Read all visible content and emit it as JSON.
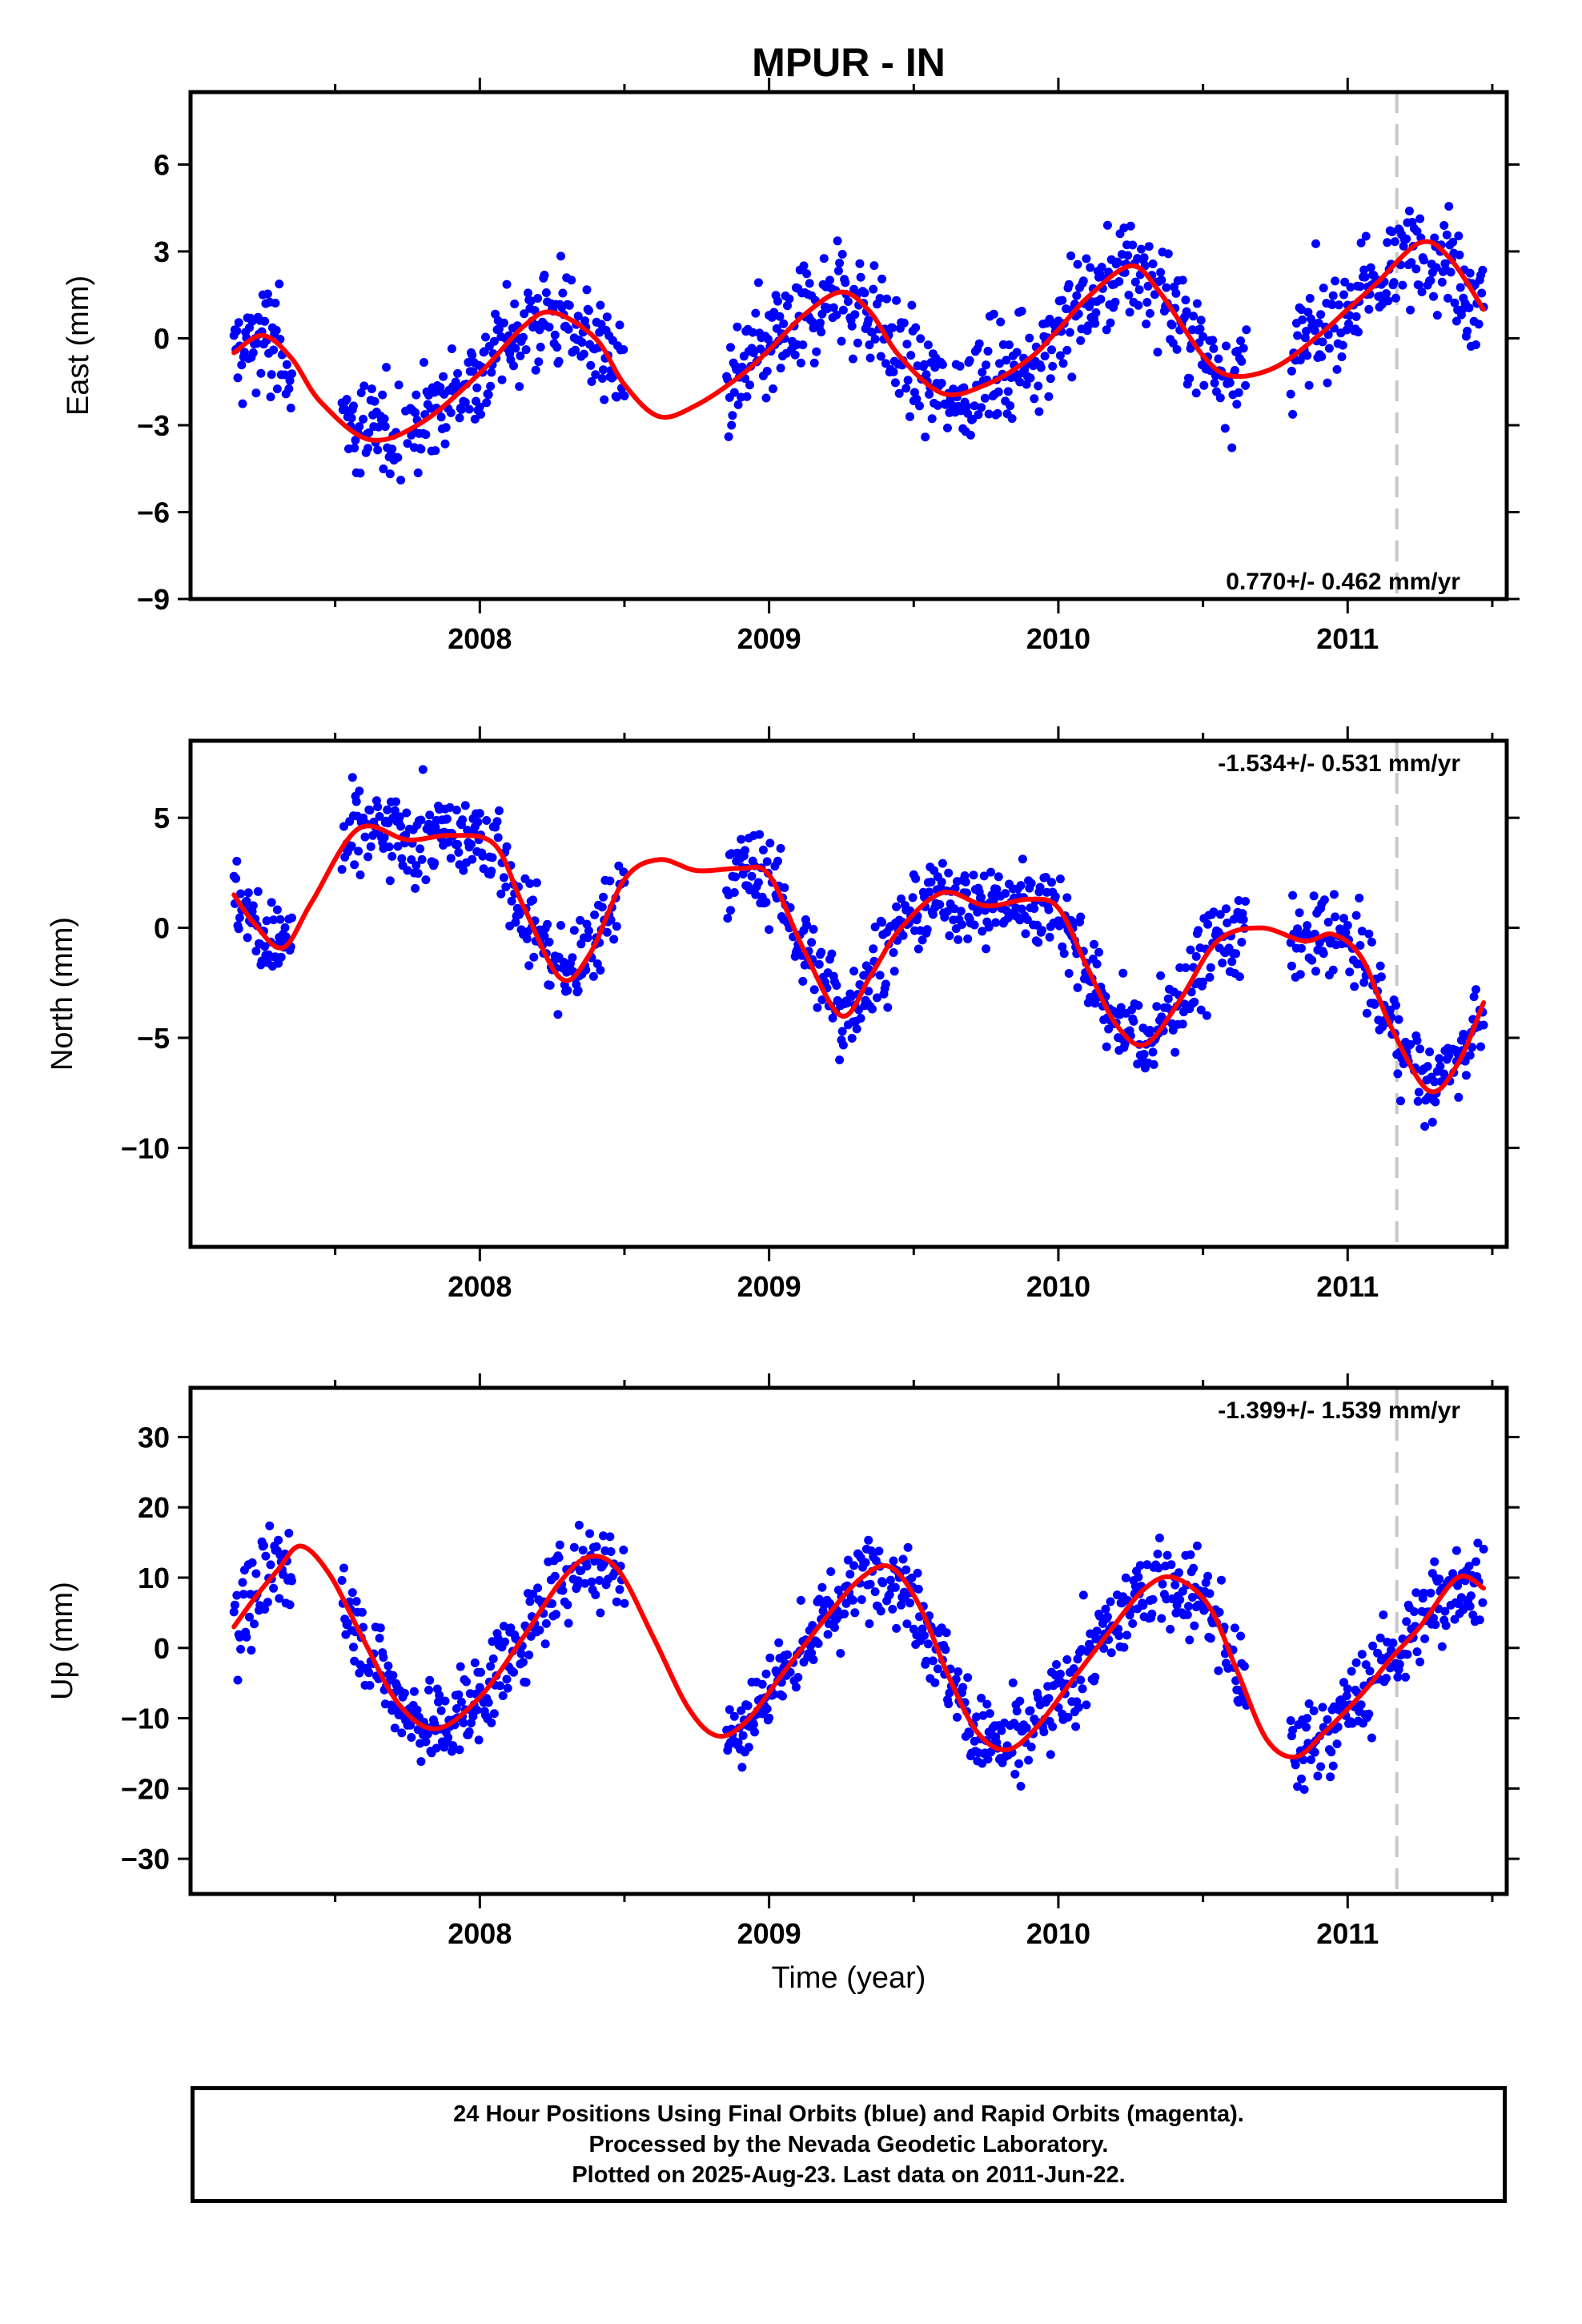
{
  "title": "MPUR - IN",
  "xlabel": "Time (year)",
  "x_tick_labels": [
    "2008",
    "2009",
    "2010",
    "2011"
  ],
  "caption": [
    "24 Hour Positions Using Final Orbits (blue) and Rapid Orbits (magenta).",
    "Processed by the Nevada Geodetic Laboratory.",
    "Plotted on 2025-Aug-23. Last data on 2011-Jun-22."
  ],
  "colors": {
    "observations": "#0000ff",
    "model": "#ff0000",
    "event_line": "#c8c8c8"
  },
  "chart_data": [
    {
      "type": "scatter",
      "title": "MPUR - IN",
      "xlabel": "",
      "ylabel": "East (mm)",
      "xlim": [
        2007.0,
        2011.55
      ],
      "ylim": [
        -9,
        8.5
      ],
      "yticks": [
        -9,
        -6,
        -3,
        0,
        3,
        6
      ],
      "event_line_x": 2011.17,
      "rate_label": "0.770+/- 0.462 mm/yr",
      "rate_position": "bottom-right",
      "data_range": [
        2007.15,
        2011.47
      ],
      "gaps": [
        [
          2007.35,
          2007.52
        ],
        [
          2008.5,
          2008.85
        ],
        [
          2010.65,
          2010.8
        ]
      ],
      "series": [
        {
          "name": "Final Orbits",
          "marker": "dot",
          "scatter_sd": 1.3,
          "description_points_per_year": 300
        },
        {
          "name": "Model",
          "type": "line",
          "x": [
            2007.15,
            2007.25,
            2007.35,
            2007.45,
            2007.62,
            2007.8,
            2008.0,
            2008.15,
            2008.25,
            2008.4,
            2008.5,
            2008.62,
            2008.75,
            2008.9,
            2009.0,
            2009.12,
            2009.25,
            2009.35,
            2009.45,
            2009.6,
            2009.75,
            2009.9,
            2010.0,
            2010.1,
            2010.25,
            2010.35,
            2010.5,
            2010.6,
            2010.75,
            2010.9,
            2011.0,
            2011.1,
            2011.25,
            2011.35,
            2011.47
          ],
          "y": [
            -0.5,
            0.1,
            -0.7,
            -2.2,
            -3.5,
            -2.9,
            -1.2,
            0.4,
            0.9,
            0.0,
            -1.6,
            -2.7,
            -2.3,
            -1.3,
            -0.4,
            0.8,
            1.6,
            0.9,
            -0.6,
            -1.9,
            -1.6,
            -0.7,
            0.3,
            1.4,
            2.5,
            1.6,
            -0.6,
            -1.3,
            -1.0,
            0.1,
            1.0,
            1.9,
            3.3,
            2.8,
            1.0
          ]
        }
      ]
    },
    {
      "type": "scatter",
      "xlabel": "",
      "ylabel": "North (mm)",
      "xlim": [
        2007.0,
        2011.55
      ],
      "ylim": [
        -14.5,
        8.5
      ],
      "yticks": [
        -10,
        -5,
        0,
        5
      ],
      "event_line_x": 2011.17,
      "rate_label": "-1.534+/- 0.531 mm/yr",
      "rate_position": "top-right",
      "data_range": [
        2007.15,
        2011.47
      ],
      "gaps": [
        [
          2007.35,
          2007.52
        ],
        [
          2008.5,
          2008.85
        ],
        [
          2010.65,
          2010.8
        ]
      ],
      "series": [
        {
          "name": "Final Orbits",
          "marker": "dot",
          "scatter_sd": 1.4,
          "description_points_per_year": 300
        },
        {
          "name": "Model",
          "type": "line",
          "x": [
            2007.15,
            2007.22,
            2007.32,
            2007.42,
            2007.58,
            2007.75,
            2007.9,
            2008.05,
            2008.15,
            2008.28,
            2008.38,
            2008.5,
            2008.62,
            2008.75,
            2008.9,
            2009.0,
            2009.12,
            2009.25,
            2009.35,
            2009.45,
            2009.6,
            2009.75,
            2009.9,
            2010.0,
            2010.1,
            2010.2,
            2010.3,
            2010.42,
            2010.55,
            2010.7,
            2010.85,
            2010.95,
            2011.05,
            2011.15,
            2011.28,
            2011.38,
            2011.47
          ],
          "y": [
            1.5,
            0.2,
            -0.9,
            1.2,
            4.5,
            4.0,
            4.2,
            3.8,
            1.0,
            -2.3,
            -1.2,
            2.2,
            3.1,
            2.6,
            2.7,
            2.4,
            -1.0,
            -4.0,
            -2.2,
            -0.1,
            1.6,
            1.0,
            1.3,
            0.9,
            -1.8,
            -4.4,
            -5.3,
            -3.3,
            -0.6,
            0.0,
            -0.6,
            -0.3,
            -1.4,
            -4.5,
            -7.4,
            -6.2,
            -3.4
          ]
        }
      ]
    },
    {
      "type": "scatter",
      "xlabel": "Time (year)",
      "ylabel": "Up (mm)",
      "xlim": [
        2007.0,
        2011.55
      ],
      "ylim": [
        -35,
        37
      ],
      "yticks": [
        -30,
        -20,
        -10,
        0,
        10,
        20,
        30
      ],
      "event_line_x": 2011.17,
      "rate_label": "-1.399+/- 1.539 mm/yr",
      "rate_position": "top-right",
      "data_range": [
        2007.15,
        2011.47
      ],
      "gaps": [
        [
          2007.35,
          2007.52
        ],
        [
          2008.5,
          2008.85
        ],
        [
          2010.65,
          2010.8
        ]
      ],
      "series": [
        {
          "name": "Final Orbits",
          "marker": "dot",
          "scatter_sd": 4.5,
          "description_points_per_year": 300
        },
        {
          "name": "Model",
          "type": "line",
          "x": [
            2007.15,
            2007.22,
            2007.3,
            2007.38,
            2007.48,
            2007.6,
            2007.72,
            2007.85,
            2008.0,
            2008.15,
            2008.28,
            2008.38,
            2008.48,
            2008.6,
            2008.72,
            2008.82,
            2008.92,
            2009.05,
            2009.2,
            2009.32,
            2009.42,
            2009.52,
            2009.62,
            2009.72,
            2009.82,
            2009.92,
            2010.05,
            2010.18,
            2010.3,
            2010.4,
            2010.52,
            2010.62,
            2010.72,
            2010.82,
            2010.92,
            2011.05,
            2011.15,
            2011.25,
            2011.38,
            2011.47
          ],
          "y": [
            3.0,
            7.0,
            11.0,
            14.5,
            10.5,
            1.0,
            -8.0,
            -11.5,
            -7.0,
            1.5,
            9.5,
            13.0,
            11.0,
            1.5,
            -8.5,
            -12.5,
            -10.5,
            -3.5,
            4.5,
            10.0,
            11.5,
            6.0,
            -4.0,
            -12.0,
            -14.5,
            -11.5,
            -4.5,
            2.5,
            8.5,
            10.0,
            6.0,
            -3.5,
            -13.0,
            -15.5,
            -12.0,
            -6.5,
            -1.5,
            3.0,
            10.0,
            8.5
          ]
        }
      ]
    }
  ]
}
